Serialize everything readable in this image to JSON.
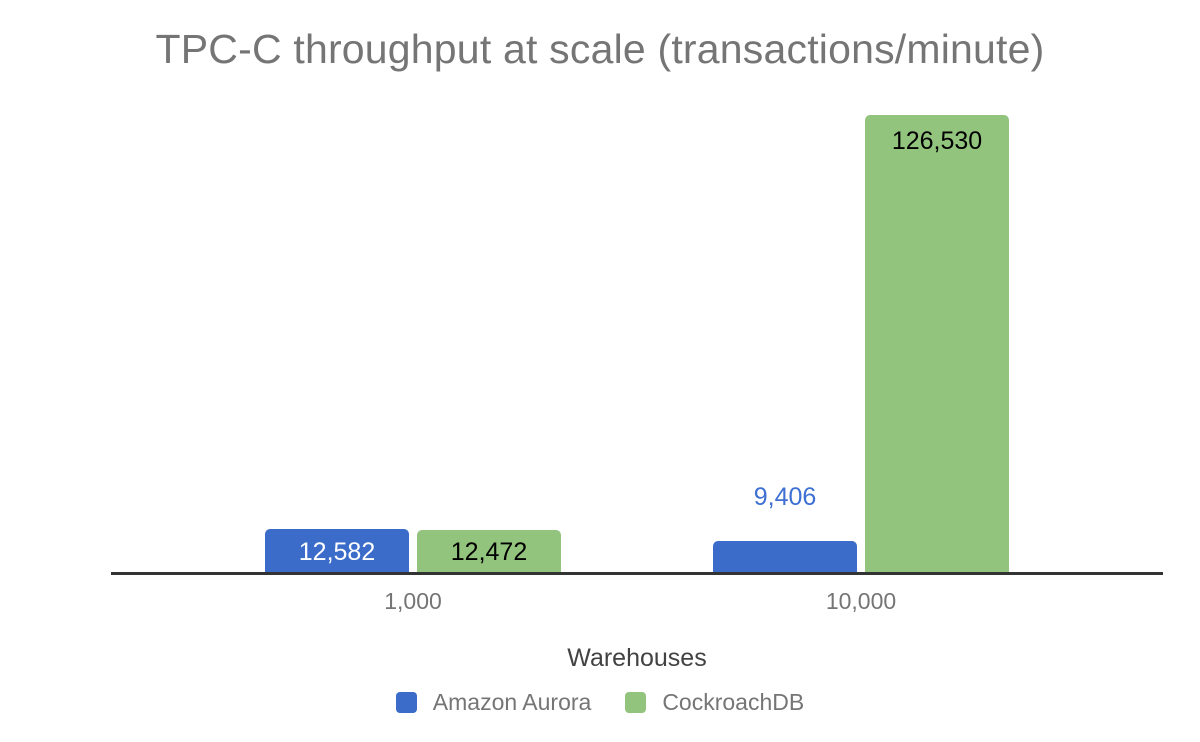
{
  "chart_data": {
    "type": "bar",
    "title": "TPC-C throughput at scale (transactions/minute)",
    "xlabel": "Warehouses",
    "ylabel": "",
    "categories": [
      "1,000",
      "10,000"
    ],
    "series": [
      {
        "name": "Amazon Aurora",
        "color": "#3b6cca",
        "values": [
          12582,
          9406
        ],
        "value_labels": [
          "12,582",
          "9,406"
        ],
        "label_color_inside": "#ffffff",
        "label_color_outside": "#3d70d2"
      },
      {
        "name": "CockroachDB",
        "color": "#93c47d",
        "values": [
          12472,
          126530
        ],
        "value_labels": [
          "12,472",
          "126,530"
        ],
        "label_color_inside": "#000000",
        "label_color_outside": "#93c47d"
      }
    ],
    "ylim": [
      0,
      130700
    ],
    "grid": false,
    "y_axis_visible": false,
    "legend_position": "bottom"
  },
  "styles": {
    "background": "#ffffff",
    "title_color": "#757575",
    "category_label_color": "#757575",
    "axis_title_color": "#424242",
    "legend_text_color": "#757575",
    "axis_line_color": "#333333"
  }
}
